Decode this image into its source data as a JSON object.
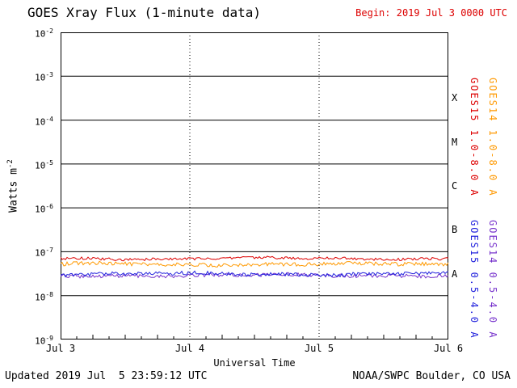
{
  "title": "GOES Xray Flux (1-minute data)",
  "begin_label": "Begin: 2019 Jul 3 0000 UTC",
  "footer": {
    "updated": "Updated 2019 Jul  5 23:59:12 UTC",
    "source": "NOAA/SWPC Boulder, CO USA"
  },
  "y_axis_label": {
    "base": "Watts m",
    "exp": "-2"
  },
  "x_axis_label": "Universal Time",
  "colors": {
    "goes15_long_red": "#dd0000",
    "goes14_long_orange": "#ff9900",
    "goes15_short_blue": "#2222dd",
    "goes14_short_purple": "#7733cc",
    "begin_text_red": "#dd0000",
    "grid_black": "#000000"
  },
  "legend": [
    {
      "text": "GOES15 1.0-8.0 A",
      "color": "#dd0000"
    },
    {
      "text": "GOES14 1.0-8.0 A",
      "color": "#ff9900"
    },
    {
      "text": "GOES15 0.5-4.0 A",
      "color": "#2222dd"
    },
    {
      "text": "GOES14 0.5-4.0 A",
      "color": "#7733cc"
    }
  ],
  "chart_data": {
    "type": "line",
    "title": "GOES Xray Flux (1-minute data)",
    "xlabel": "Universal Time",
    "ylabel": "Watts m^-2",
    "x_tick_labels": [
      "Jul 3",
      "Jul 4",
      "Jul 5",
      "Jul 6"
    ],
    "x_range": "2019 Jul 3 0000 UTC to 2019 Jul 6 0000 UTC",
    "y_scale": "log",
    "y_tick_labels": [
      "10^-2",
      "10^-3",
      "10^-4",
      "10^-5",
      "10^-6",
      "10^-7",
      "10^-8",
      "10^-9"
    ],
    "y_log_range_exponents": [
      -9,
      -2
    ],
    "grid": {
      "horizontal": "solid black line per decade",
      "vertical": "dotted black line per day",
      "legend_position": "right side, rotated vertical"
    },
    "flare_classes": [
      {
        "label": "X",
        "decade_midpoint_exponent": -3.5
      },
      {
        "label": "M",
        "decade_midpoint_exponent": -4.5
      },
      {
        "label": "C",
        "decade_midpoint_exponent": -5.5
      },
      {
        "label": "B",
        "decade_midpoint_exponent": -6.5
      },
      {
        "label": "A",
        "decade_midpoint_exponent": -7.5
      }
    ],
    "series": [
      {
        "name": "GOES14 0.5-4.0 A",
        "color": "#7733cc",
        "approx_flux_w_m2": 2.9e-08,
        "behavior": "flat quiet background, slight noise"
      },
      {
        "name": "GOES15 0.5-4.0 A",
        "color": "#2222dd",
        "approx_flux_w_m2": 3.1e-08,
        "behavior": "flat quiet background, slight noise"
      },
      {
        "name": "GOES14 1.0-8.0 A",
        "color": "#ff9900",
        "approx_flux_w_m2": 5.2e-08,
        "behavior": "flat quiet background, slight noise"
      },
      {
        "name": "GOES15 1.0-8.0 A",
        "color": "#dd0000",
        "approx_flux_w_m2": 7e-08,
        "behavior": "flat quiet background, slight noise"
      }
    ]
  }
}
